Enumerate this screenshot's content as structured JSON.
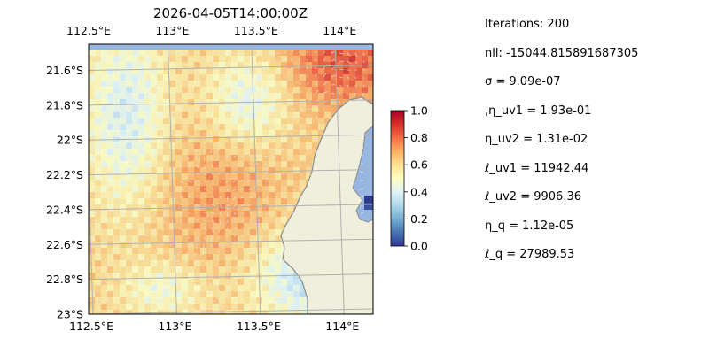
{
  "chart_data": {
    "type": "heatmap",
    "title": "2026-04-05T14:00:00Z",
    "x_ticks": [
      "112.5°E",
      "113°E",
      "113.5°E",
      "114°E"
    ],
    "y_ticks": [
      "21.6°S",
      "21.8°S",
      "22°S",
      "22.2°S",
      "22.4°S",
      "22.6°S",
      "22.8°S",
      "23°S"
    ],
    "xlim": [
      112.5,
      114.2
    ],
    "ylim": [
      -23.0,
      -21.45
    ],
    "x_tick_values": [
      112.5,
      113.0,
      113.5,
      114.0
    ],
    "y_tick_values": [
      -21.6,
      -21.8,
      -22.0,
      -22.2,
      -22.4,
      -22.6,
      -22.8,
      -23.0
    ],
    "grid": true,
    "colorbar": {
      "range": [
        0.0,
        1.0
      ],
      "ticks": [
        "1.0",
        "0.8",
        "0.6",
        "0.4",
        "0.2",
        "0.0"
      ],
      "colormap": "RdYlBu_r"
    },
    "colors": {
      "land": "#efefdc",
      "ocean": "#97b6e1",
      "coast": "#8a8a8a",
      "grid": "#b0b0b0",
      "arrows": "#e8e8f0"
    }
  },
  "stats": [
    "Iterations: 200",
    "nll: -15044.815891687305",
    "σ = 9.09e-07",
    ",η_uv1 = 1.93e-01",
    "η_uv2 = 1.31e-02",
    "ℓ_uv1 = 11942.44",
    "ℓ_uv2 = 9906.36",
    "η_q = 1.12e-05",
    "ℓ_q = 27989.53"
  ]
}
